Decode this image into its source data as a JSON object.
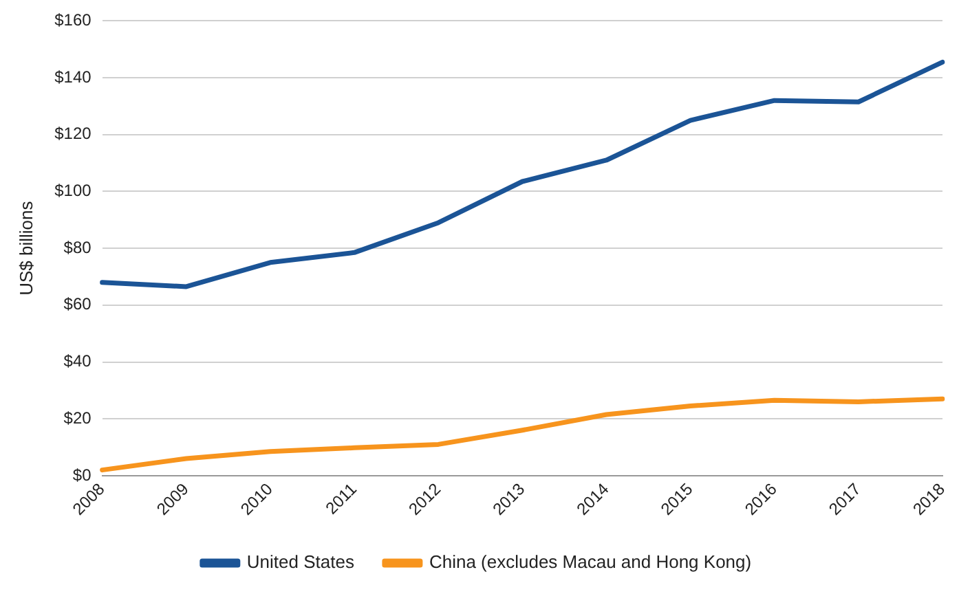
{
  "chart_data": {
    "type": "line",
    "ylabel": "US$ billions",
    "categories": [
      "2008",
      "2009",
      "2010",
      "2011",
      "2012",
      "2013",
      "2014",
      "2015",
      "2016",
      "2017",
      "2018"
    ],
    "series": [
      {
        "name": "United States",
        "color": "#1b5496",
        "values": [
          68,
          66.5,
          75,
          78.5,
          89,
          103.5,
          111,
          125,
          132,
          131.5,
          145.5
        ]
      },
      {
        "name": "China (excludes Macau and Hong Kong)",
        "color": "#f7941d",
        "values": [
          2,
          6,
          8.5,
          9.8,
          11,
          16,
          21.5,
          24.5,
          26.5,
          26,
          27
        ]
      }
    ],
    "ylim": [
      0,
      160
    ],
    "yticks": [
      {
        "value": 0,
        "label": "$0"
      },
      {
        "value": 20,
        "label": "$20"
      },
      {
        "value": 40,
        "label": "$40"
      },
      {
        "value": 60,
        "label": "$60"
      },
      {
        "value": 80,
        "label": "$80"
      },
      {
        "value": 100,
        "label": "$100"
      },
      {
        "value": 120,
        "label": "$120"
      },
      {
        "value": 140,
        "label": "$140"
      },
      {
        "value": 160,
        "label": "$160"
      }
    ],
    "grid": "y",
    "legend": "bottom",
    "marker": "none",
    "line_style": "solid"
  }
}
